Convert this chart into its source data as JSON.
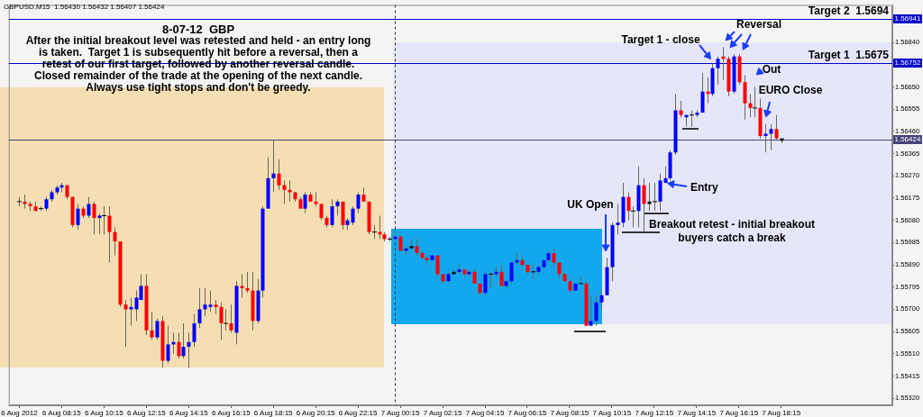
{
  "chart_data": {
    "type": "candlestick",
    "title": "8-07-12  GBP",
    "subtitle": "After the initial breakout level was retested and held - an entry long\nis taken.  Target 1 is subsequently hit before a reversal, then a\nretest of our first target, followed by another reversal candle.\nClosed remainder of the trade at the opening of the next candle.\nAlways use tight stops and don't be greedy.",
    "x": [
      "2012-08-06T06:15",
      "2012-08-06T06:30",
      "2012-08-06T06:45",
      "2012-08-06T07:00",
      "2012-08-06T07:15",
      "2012-08-06T07:30",
      "2012-08-06T07:45",
      "2012-08-06T08:00",
      "2012-08-06T08:15",
      "2012-08-06T08:30",
      "2012-08-06T08:45",
      "2012-08-06T09:00",
      "2012-08-06T09:15",
      "2012-08-06T09:30",
      "2012-08-06T09:45",
      "2012-08-06T10:00",
      "2012-08-06T10:15",
      "2012-08-06T10:30",
      "2012-08-06T10:45",
      "2012-08-06T11:00",
      "2012-08-06T11:15",
      "2012-08-06T11:30",
      "2012-08-06T11:45",
      "2012-08-06T12:00",
      "2012-08-06T12:15",
      "2012-08-06T12:30",
      "2012-08-06T12:45",
      "2012-08-06T13:00",
      "2012-08-06T13:15",
      "2012-08-06T13:30",
      "2012-08-06T13:45",
      "2012-08-06T14:00",
      "2012-08-06T14:15",
      "2012-08-06T14:30",
      "2012-08-06T14:45",
      "2012-08-06T15:00",
      "2012-08-06T15:15",
      "2012-08-06T15:30",
      "2012-08-06T15:45",
      "2012-08-06T16:00",
      "2012-08-06T16:15",
      "2012-08-06T16:30",
      "2012-08-06T16:45",
      "2012-08-06T17:00",
      "2012-08-06T17:15",
      "2012-08-06T17:30",
      "2012-08-06T17:45",
      "2012-08-06T18:00",
      "2012-08-06T18:15",
      "2012-08-06T18:30",
      "2012-08-06T18:45",
      "2012-08-06T19:00",
      "2012-08-06T19:15",
      "2012-08-06T19:30",
      "2012-08-06T19:45",
      "2012-08-06T20:00",
      "2012-08-06T20:15",
      "2012-08-06T20:30",
      "2012-08-06T20:45",
      "2012-08-06T21:00",
      "2012-08-06T21:15",
      "2012-08-06T21:30",
      "2012-08-06T21:45",
      "2012-08-06T22:00",
      "2012-08-06T22:15",
      "2012-08-06T22:30",
      "2012-08-06T22:45",
      "2012-08-06T23:00",
      "2012-08-06T23:15",
      "2012-08-06T23:30",
      "2012-08-06T23:45",
      "2012-08-07T00:00",
      "2012-08-07T00:15",
      "2012-08-07T00:30",
      "2012-08-07T00:45",
      "2012-08-07T01:00",
      "2012-08-07T01:15",
      "2012-08-07T01:30",
      "2012-08-07T01:45",
      "2012-08-07T02:00",
      "2012-08-07T02:15",
      "2012-08-07T02:30",
      "2012-08-07T02:45",
      "2012-08-07T03:00",
      "2012-08-07T03:15",
      "2012-08-07T03:30",
      "2012-08-07T03:45",
      "2012-08-07T04:00",
      "2012-08-07T04:15",
      "2012-08-07T04:30",
      "2012-08-07T04:45",
      "2012-08-07T05:00",
      "2012-08-07T05:15",
      "2012-08-07T05:30",
      "2012-08-07T05:45",
      "2012-08-07T06:00",
      "2012-08-07T06:15",
      "2012-08-07T06:30",
      "2012-08-07T06:45",
      "2012-08-07T07:00",
      "2012-08-07T07:15",
      "2012-08-07T07:30",
      "2012-08-07T07:45",
      "2012-08-07T08:00",
      "2012-08-07T08:15",
      "2012-08-07T08:30",
      "2012-08-07T08:45",
      "2012-08-07T09:00",
      "2012-08-07T09:15",
      "2012-08-07T09:30",
      "2012-08-07T09:45",
      "2012-08-07T10:00",
      "2012-08-07T10:15",
      "2012-08-07T10:30",
      "2012-08-07T10:45",
      "2012-08-07T11:00",
      "2012-08-07T11:15",
      "2012-08-07T11:30",
      "2012-08-07T11:45",
      "2012-08-07T12:00",
      "2012-08-07T12:15",
      "2012-08-07T12:30",
      "2012-08-07T12:45",
      "2012-08-07T13:00",
      "2012-08-07T13:15",
      "2012-08-07T13:30",
      "2012-08-07T13:45",
      "2012-08-07T14:00",
      "2012-08-07T14:15",
      "2012-08-07T14:30",
      "2012-08-07T14:45",
      "2012-08-07T15:00",
      "2012-08-07T15:15",
      "2012-08-07T15:30",
      "2012-08-07T15:45",
      "2012-08-07T16:00",
      "2012-08-07T16:15",
      "2012-08-07T16:30",
      "2012-08-07T16:45",
      "2012-08-07T17:00",
      "2012-08-07T17:15",
      "2012-08-07T17:30",
      "2012-08-07T17:45",
      "2012-08-07T18:00",
      "2012-08-07T18:15"
    ],
    "ohlc": [
      [
        1.5616,
        1.5618,
        1.5614,
        1.5616
      ],
      [
        1.5616,
        1.5619,
        1.5613,
        1.5615
      ],
      [
        1.5615,
        1.5616,
        1.5612,
        1.5614
      ],
      [
        1.5614,
        1.5616,
        1.5612,
        1.5612
      ],
      [
        1.5613,
        1.5614,
        1.5612,
        1.5613
      ],
      [
        1.5613,
        1.5618,
        1.5612,
        1.5617
      ],
      [
        1.5617,
        1.5621,
        1.5616,
        1.562
      ],
      [
        1.562,
        1.5623,
        1.5619,
        1.5622
      ],
      [
        1.5622,
        1.5624,
        1.562,
        1.5623
      ],
      [
        1.5623,
        1.5623,
        1.5617,
        1.5618
      ],
      [
        1.5618,
        1.5618,
        1.5605,
        1.5606
      ],
      [
        1.5606,
        1.5615,
        1.5604,
        1.5613
      ],
      [
        1.5613,
        1.5614,
        1.5609,
        1.561
      ],
      [
        1.561,
        1.5618,
        1.5609,
        1.5615
      ],
      [
        1.5615,
        1.5616,
        1.5602,
        1.5609
      ],
      [
        1.5609,
        1.5611,
        1.5602,
        1.561
      ],
      [
        1.561,
        1.5614,
        1.5602,
        1.561
      ],
      [
        1.561,
        1.5614,
        1.559,
        1.5603
      ],
      [
        1.5603,
        1.5605,
        1.5593,
        1.5599
      ],
      [
        1.5599,
        1.5599,
        1.5571,
        1.5572
      ],
      [
        1.5572,
        1.5574,
        1.5554,
        1.557
      ],
      [
        1.557,
        1.5575,
        1.5563,
        1.5571
      ],
      [
        1.557,
        1.5578,
        1.5565,
        1.5575
      ],
      [
        1.5574,
        1.5585,
        1.5574,
        1.558
      ],
      [
        1.558,
        1.5585,
        1.5559,
        1.5561
      ],
      [
        1.5561,
        1.5569,
        1.5557,
        1.5558
      ],
      [
        1.5558,
        1.5566,
        1.5557,
        1.5565
      ],
      [
        1.5565,
        1.5567,
        1.5545,
        1.5548
      ],
      [
        1.5548,
        1.5563,
        1.5547,
        1.5555
      ],
      [
        1.5555,
        1.556,
        1.5551,
        1.5556
      ],
      [
        1.5556,
        1.556,
        1.5549,
        1.555
      ],
      [
        1.555,
        1.5564,
        1.5549,
        1.5554
      ],
      [
        1.5554,
        1.556,
        1.5545,
        1.5556
      ],
      [
        1.5556,
        1.5568,
        1.5554,
        1.5564
      ],
      [
        1.5564,
        1.5579,
        1.5562,
        1.557
      ],
      [
        1.557,
        1.5579,
        1.5567,
        1.5572
      ],
      [
        1.5571,
        1.5578,
        1.5569,
        1.5572
      ],
      [
        1.5572,
        1.5574,
        1.5568,
        1.5571
      ],
      [
        1.5571,
        1.5573,
        1.5557,
        1.5564
      ],
      [
        1.5564,
        1.557,
        1.5561,
        1.5564
      ],
      [
        1.5564,
        1.5572,
        1.556,
        1.5561
      ],
      [
        1.556,
        1.5582,
        1.5555,
        1.558
      ],
      [
        1.558,
        1.5585,
        1.5575,
        1.5579
      ],
      [
        1.5579,
        1.5586,
        1.5577,
        1.5578
      ],
      [
        1.5578,
        1.5586,
        1.5561,
        1.5565
      ],
      [
        1.5565,
        1.5583,
        1.5564,
        1.5578
      ],
      [
        1.5578,
        1.5614,
        1.5575,
        1.5613
      ],
      [
        1.5613,
        1.5635,
        1.5613,
        1.5626
      ],
      [
        1.5626,
        1.5642,
        1.562,
        1.5628
      ],
      [
        1.5628,
        1.5634,
        1.5621,
        1.5623
      ],
      [
        1.5623,
        1.5625,
        1.5615,
        1.5621
      ],
      [
        1.5621,
        1.5625,
        1.5616,
        1.562
      ],
      [
        1.562,
        1.562,
        1.5616,
        1.5617
      ],
      [
        1.5617,
        1.5618,
        1.5613,
        1.5613
      ],
      [
        1.5613,
        1.562,
        1.5611,
        1.5619
      ],
      [
        1.5619,
        1.562,
        1.5616,
        1.5616
      ],
      [
        1.5616,
        1.562,
        1.5614,
        1.5615
      ],
      [
        1.5615,
        1.5615,
        1.5608,
        1.5609
      ],
      [
        1.5609,
        1.561,
        1.5605,
        1.5606
      ],
      [
        1.5606,
        1.5617,
        1.5605,
        1.5614
      ],
      [
        1.5614,
        1.5617,
        1.561,
        1.5616
      ],
      [
        1.5616,
        1.5616,
        1.5604,
        1.5606
      ],
      [
        1.5606,
        1.5609,
        1.5604,
        1.5608
      ],
      [
        1.5607,
        1.5614,
        1.5606,
        1.5613
      ],
      [
        1.5613,
        1.562,
        1.5611,
        1.5619
      ],
      [
        1.5619,
        1.5622,
        1.5616,
        1.5616
      ],
      [
        1.5616,
        1.5616,
        1.5602,
        1.5603
      ],
      [
        1.5603,
        1.5606,
        1.56,
        1.5603
      ],
      [
        1.5603,
        1.561,
        1.56,
        1.5602
      ],
      [
        1.5602,
        1.5603,
        1.5599,
        1.56
      ],
      [
        1.56,
        1.5601,
        1.5599,
        1.56
      ],
      [
        1.56,
        1.5604,
        1.5599,
        1.5601
      ],
      [
        1.5601,
        1.5602,
        1.5595,
        1.5595
      ],
      [
        1.5595,
        1.5597,
        1.5593,
        1.5596
      ],
      [
        1.5596,
        1.56,
        1.5596,
        1.5597
      ],
      [
        1.5597,
        1.56,
        1.5593,
        1.5594
      ],
      [
        1.5594,
        1.5595,
        1.5591,
        1.5592
      ],
      [
        1.5592,
        1.5593,
        1.5589,
        1.5591
      ],
      [
        1.5591,
        1.5593,
        1.5591,
        1.5593
      ],
      [
        1.5593,
        1.5593,
        1.5584,
        1.5585
      ],
      [
        1.5585,
        1.5585,
        1.5581,
        1.5582
      ],
      [
        1.5582,
        1.5586,
        1.5581,
        1.5585
      ],
      [
        1.5585,
        1.5587,
        1.5585,
        1.5586
      ],
      [
        1.5586,
        1.5589,
        1.5585,
        1.5587
      ],
      [
        1.5587,
        1.5587,
        1.5584,
        1.5585
      ],
      [
        1.5585,
        1.5587,
        1.5584,
        1.5586
      ],
      [
        1.5586,
        1.5587,
        1.5581,
        1.5581
      ],
      [
        1.5581,
        1.5581,
        1.5576,
        1.5577
      ],
      [
        1.5577,
        1.5586,
        1.5576,
        1.5585
      ],
      [
        1.5585,
        1.5586,
        1.5579,
        1.5585
      ],
      [
        1.5585,
        1.5588,
        1.5584,
        1.5586
      ],
      [
        1.5586,
        1.5589,
        1.558,
        1.558
      ],
      [
        1.558,
        1.5582,
        1.5579,
        1.5582
      ],
      [
        1.5582,
        1.559,
        1.5581,
        1.559
      ],
      [
        1.559,
        1.5594,
        1.5589,
        1.5591
      ],
      [
        1.5591,
        1.5593,
        1.5588,
        1.5589
      ],
      [
        1.5589,
        1.5589,
        1.5585,
        1.5586
      ],
      [
        1.5586,
        1.5589,
        1.5583,
        1.5586
      ],
      [
        1.5586,
        1.5589,
        1.5585,
        1.5588
      ],
      [
        1.5588,
        1.5591,
        1.5587,
        1.5591
      ],
      [
        1.5591,
        1.5595,
        1.559,
        1.5594
      ],
      [
        1.5594,
        1.5596,
        1.5588,
        1.559
      ],
      [
        1.559,
        1.559,
        1.5583,
        1.5585
      ],
      [
        1.5585,
        1.5586,
        1.5582,
        1.5582
      ],
      [
        1.5582,
        1.5583,
        1.5577,
        1.5578
      ],
      [
        1.5578,
        1.5581,
        1.5578,
        1.5581
      ],
      [
        1.5581,
        1.5584,
        1.5581,
        1.5581
      ],
      [
        1.5581,
        1.5582,
        1.5563,
        1.5563
      ],
      [
        1.5563,
        1.5576,
        1.5563,
        1.5565
      ],
      [
        1.5565,
        1.5576,
        1.5563,
        1.5573
      ],
      [
        1.5573,
        1.5578,
        1.557,
        1.5576
      ],
      [
        1.5576,
        1.5592,
        1.5576,
        1.5588
      ],
      [
        1.5588,
        1.5607,
        1.5582,
        1.5606
      ],
      [
        1.5606,
        1.5615,
        1.5602,
        1.5607
      ],
      [
        1.5607,
        1.5624,
        1.5605,
        1.5618
      ],
      [
        1.5618,
        1.562,
        1.5608,
        1.5612
      ],
      [
        1.5612,
        1.5614,
        1.5605,
        1.5612
      ],
      [
        1.5612,
        1.5631,
        1.5605,
        1.5623
      ],
      [
        1.5623,
        1.5626,
        1.5603,
        1.5615
      ],
      [
        1.5615,
        1.5624,
        1.5612,
        1.5616
      ],
      [
        1.5616,
        1.5624,
        1.5612,
        1.5616
      ],
      [
        1.5616,
        1.5628,
        1.5612,
        1.5625
      ],
      [
        1.5624,
        1.5631,
        1.5624,
        1.5626
      ],
      [
        1.5626,
        1.5638,
        1.5625,
        1.5637
      ],
      [
        1.5637,
        1.5662,
        1.5636,
        1.5655
      ],
      [
        1.5655,
        1.5659,
        1.5652,
        1.5653
      ],
      [
        1.5652,
        1.5653,
        1.5648,
        1.5653
      ],
      [
        1.5653,
        1.5655,
        1.5648,
        1.5653
      ],
      [
        1.5653,
        1.5655,
        1.5652,
        1.5654
      ],
      [
        1.5654,
        1.5671,
        1.5654,
        1.5663
      ],
      [
        1.5663,
        1.5669,
        1.5658,
        1.5662
      ],
      [
        1.5662,
        1.5675,
        1.5661,
        1.5673
      ],
      [
        1.5673,
        1.5678,
        1.5666,
        1.5677
      ],
      [
        1.5678,
        1.5682,
        1.5668,
        1.5677
      ],
      [
        1.5677,
        1.5678,
        1.5661,
        1.5663
      ],
      [
        1.5663,
        1.5679,
        1.5662,
        1.5678
      ],
      [
        1.5678,
        1.5679,
        1.5666,
        1.5667
      ],
      [
        1.5667,
        1.567,
        1.5651,
        1.5658
      ],
      [
        1.5658,
        1.5662,
        1.5652,
        1.5656
      ],
      [
        1.5656,
        1.5665,
        1.5652,
        1.5656
      ],
      [
        1.5656,
        1.566,
        1.5643,
        1.5644
      ],
      [
        1.5644,
        1.5649,
        1.5637,
        1.5645
      ],
      [
        1.5645,
        1.5649,
        1.5638,
        1.5647
      ],
      [
        1.5647,
        1.5653,
        1.5642,
        1.5643
      ],
      [
        1.5643,
        1.5643,
        1.5641,
        1.5642
      ]
    ],
    "colors": [
      "#000000",
      "#ff0000",
      "#ff0000",
      "#ff0000",
      "#000000",
      "#0000ff",
      "#0000ff",
      "#0000ff",
      "#0000ff",
      "#ff0000",
      "#ff0000",
      "#0000ff",
      "#ff0000",
      "#0000ff",
      "#ff0000",
      "#0000ff",
      "#000000",
      "#ff0000",
      "#ff0000",
      "#ff0000",
      "#ff0000",
      "#0000ff",
      "#0000ff",
      "#0000ff",
      "#ff0000",
      "#ff0000",
      "#0000ff",
      "#ff0000",
      "#0000ff",
      "#0000ff",
      "#ff0000",
      "#0000ff",
      "#0000ff",
      "#0000ff",
      "#0000ff",
      "#0000ff",
      "#0000ff",
      "#ff0000",
      "#ff0000",
      "#000000",
      "#ff0000",
      "#0000ff",
      "#ff0000",
      "#ff0000",
      "#ff0000",
      "#0000ff",
      "#0000ff",
      "#0000ff",
      "#0000ff",
      "#ff0000",
      "#ff0000",
      "#ff0000",
      "#ff0000",
      "#ff0000",
      "#0000ff",
      "#ff0000",
      "#ff0000",
      "#ff0000",
      "#ff0000",
      "#0000ff",
      "#0000ff",
      "#ff0000",
      "#0000ff",
      "#0000ff",
      "#0000ff",
      "#ff0000",
      "#ff0000",
      "#000000",
      "#ff0000",
      "#ff0000",
      "#000000",
      "#0000ff",
      "#ff0000",
      "#0000ff",
      "#000000",
      "#ff0000",
      "#ff0000",
      "#ff0000",
      "#0000ff",
      "#ff0000",
      "#ff0000",
      "#0000ff",
      "#000000",
      "#0000ff",
      "#ff0000",
      "#0000ff",
      "#ff0000",
      "#ff0000",
      "#0000ff",
      "#000000",
      "#0000ff",
      "#ff0000",
      "#0000ff",
      "#0000ff",
      "#0000ff",
      "#ff0000",
      "#ff0000",
      "#000000",
      "#0000ff",
      "#0000ff",
      "#0000ff",
      "#ff0000",
      "#ff0000",
      "#ff0000",
      "#ff0000",
      "#0000ff",
      "#000000",
      "#ff0000",
      "#0000ff",
      "#0000ff",
      "#0000ff",
      "#0000ff",
      "#0000ff",
      "#0000ff",
      "#0000ff",
      "#ff0000",
      "#000000",
      "#0000ff",
      "#ff0000",
      "#000000",
      "#000000",
      "#0000ff",
      "#0000ff",
      "#0000ff",
      "#0000ff",
      "#ff0000",
      "#0000ff",
      "#000000",
      "#0000ff",
      "#0000ff",
      "#ff0000",
      "#0000ff",
      "#0000ff",
      "#ff0000",
      "#ff0000",
      "#0000ff",
      "#ff0000",
      "#ff0000",
      "#ff0000",
      "#000000",
      "#ff0000",
      "#0000ff",
      "#0000ff",
      "#ff0000",
      "#000000"
    ],
    "color": "#6a6a5a",
    "xlim": [
      "2012-08-06T05:45",
      "2012-08-07T23:30"
    ],
    "xticks": [
      {
        "value": "2012-08-06T06:15",
        "label": "6 Aug 2012"
      },
      {
        "value": "2012-08-06T08:15",
        "label": "6 Aug 08:15"
      },
      {
        "value": "2012-08-06T10:15",
        "label": "6 Aug 10:15"
      },
      {
        "value": "2012-08-06T12:15",
        "label": "6 Aug 12:15"
      },
      {
        "value": "2012-08-06T14:15",
        "label": "6 Aug 14:15"
      },
      {
        "value": "2012-08-06T16:15",
        "label": "6 Aug 16:15"
      },
      {
        "value": "2012-08-06T18:15",
        "label": "6 Aug 18:15"
      },
      {
        "value": "2012-08-06T20:15",
        "label": "6 Aug 20:15"
      },
      {
        "value": "2012-08-06T22:15",
        "label": "6 Aug 22:15"
      },
      {
        "value": "2012-08-07T00:15",
        "label": "7 Aug 00:15"
      },
      {
        "value": "2012-08-07T02:15",
        "label": "7 Aug 02:15"
      },
      {
        "value": "2012-08-07T04:15",
        "label": "7 Aug 04:15"
      },
      {
        "value": "2012-08-07T06:15",
        "label": "7 Aug 06:15"
      },
      {
        "value": "2012-08-07T08:15",
        "label": "7 Aug 08:15"
      },
      {
        "value": "2012-08-07T10:15",
        "label": "7 Aug 10:15"
      },
      {
        "value": "2012-08-07T12:15",
        "label": "7 Aug 12:15"
      },
      {
        "value": "2012-08-07T14:15",
        "label": "7 Aug 14:15"
      },
      {
        "value": "2012-08-07T16:15",
        "label": "7 Aug 16:15"
      },
      {
        "value": "2012-08-07T18:15",
        "label": "7 Aug 18:15"
      }
    ],
    "ylim": [
      1.5529,
      1.57
    ],
    "yticks": [
      {
        "value": 1.5532,
        "label": "1.55320"
      },
      1.55415,
      {
        "value": 1.5551,
        "label": "1.55510"
      },
      1.55605,
      {
        "value": 1.557,
        "label": "1.55700"
      },
      1.55795,
      {
        "value": 1.5589,
        "label": "1.55890"
      },
      1.55985,
      {
        "value": 1.5608,
        "label": "1.56080"
      },
      1.56175,
      {
        "value": 1.5627,
        "label": "1.56270"
      },
      1.56365,
      {
        "value": 1.5646,
        "label": "1.56460"
      },
      1.56555,
      {
        "value": 1.5665,
        "label": "1.56650"
      },
      {
        "value": 1.5684,
        "label": "1.56840"
      }
    ],
    "ref_lines": [
      {
        "axis": "y",
        "value": 1.56941,
        "label": "Target 2  1.5694",
        "color": "#0000cc"
      },
      {
        "axis": "y",
        "value": 1.56752,
        "label": "Target 1  1.5675",
        "color": "#0000cc"
      },
      {
        "axis": "y",
        "value": 1.56424,
        "color": "#44447a"
      },
      {
        "axis": "x",
        "value": "2012-08-07T00:00",
        "color": "#333333",
        "line_style": "dashed"
      }
    ],
    "annotations": [
      "GBPUSD,M15  1.56430 1.56432 1.56407 1.56424",
      "UK Open",
      {
        "text": "Entry",
        "x": "2012-08-07T12:45",
        "y": 1.5624
      },
      "Breakout retest - initial breakout\nbuyers catch a break",
      {
        "text": "Target 1 - close",
        "x": "2012-08-07T15:00",
        "y": 1.5676
      },
      "Reversal",
      "Out",
      {
        "text": "EURO Close",
        "x": "2012-08-07T17:30",
        "y": 1.5651
      },
      {
        "text": "1.56941",
        "y": 1.56941
      },
      {
        "text": "1.56752",
        "y": 1.56752
      },
      {
        "text": "1.56424",
        "y": 1.56424
      }
    ]
  }
}
